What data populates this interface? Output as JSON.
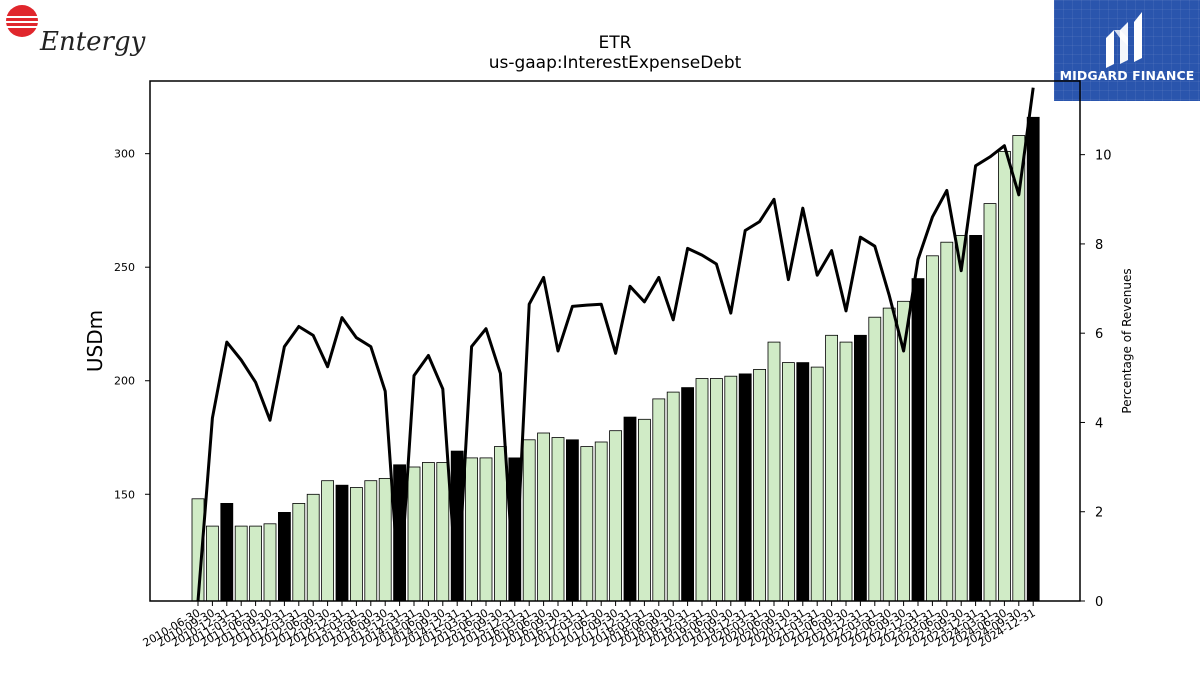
{
  "branding": {
    "left_logo_text": "Entergy",
    "right_logo_text": "MIDGARD FINANCE"
  },
  "chart_data": {
    "type": "bar",
    "title": "ETR",
    "subtitle": "us-gaap:InterestExpenseDebt",
    "ylabel": "USDm",
    "y2label": "Percentage of Revenues",
    "ylim": [
      103,
      332
    ],
    "y2lim": [
      0,
      11.65
    ],
    "yticks": [
      150,
      200,
      250,
      300
    ],
    "y2ticks": [
      0,
      2,
      4,
      6,
      8,
      10
    ],
    "colors": {
      "quarter_bar": "#d0ebc6",
      "annual_bar": "#000000",
      "line": "#000000",
      "bar_edge": "#000000"
    },
    "categories": [
      "2010-06-30",
      "2010-09-30",
      "2010-12-31",
      "2011-03-31",
      "2011-06-30",
      "2011-09-30",
      "2011-12-31",
      "2012-03-31",
      "2012-06-30",
      "2012-09-30",
      "2012-12-31",
      "2013-03-31",
      "2013-06-30",
      "2013-09-30",
      "2013-12-31",
      "2014-03-31",
      "2014-06-30",
      "2014-09-30",
      "2014-12-31",
      "2015-03-31",
      "2015-06-30",
      "2015-09-30",
      "2015-12-31",
      "2016-03-31",
      "2016-06-30",
      "2016-09-30",
      "2016-12-31",
      "2017-03-31",
      "2017-06-30",
      "2017-09-30",
      "2017-12-31",
      "2018-03-31",
      "2018-06-30",
      "2018-09-30",
      "2018-12-31",
      "2019-03-31",
      "2019-06-30",
      "2019-09-30",
      "2019-12-31",
      "2020-03-31",
      "2020-06-30",
      "2020-09-30",
      "2020-12-31",
      "2021-03-31",
      "2021-06-30",
      "2021-09-30",
      "2021-12-31",
      "2022-03-31",
      "2022-06-30",
      "2022-09-30",
      "2022-12-31",
      "2023-03-31",
      "2023-06-30",
      "2023-09-30",
      "2023-12-31",
      "2024-03-31",
      "2024-06-30",
      "2024-09-30",
      "2024-12-31"
    ],
    "series": [
      {
        "kind": "bar",
        "values": [
          148,
          136,
          146,
          136,
          136,
          137,
          142,
          146,
          150,
          156,
          154,
          153,
          156,
          157,
          163,
          162,
          164,
          164,
          169,
          166,
          166,
          171,
          166,
          174,
          177,
          175,
          174,
          171,
          173,
          178,
          184,
          183,
          192,
          195,
          197,
          201,
          201,
          202,
          203,
          205,
          217,
          208,
          208,
          206,
          220,
          217,
          220,
          228,
          232,
          235,
          245,
          255,
          261,
          264,
          264,
          278,
          301,
          308,
          316
        ],
        "annual": [
          false,
          false,
          true,
          false,
          false,
          false,
          true,
          false,
          false,
          false,
          true,
          false,
          false,
          false,
          true,
          false,
          false,
          false,
          true,
          false,
          false,
          false,
          true,
          false,
          false,
          false,
          true,
          false,
          false,
          false,
          true,
          false,
          false,
          false,
          true,
          false,
          false,
          false,
          true,
          false,
          false,
          false,
          true,
          false,
          false,
          false,
          true,
          false,
          false,
          false,
          true,
          false,
          false,
          false,
          true,
          false,
          false,
          false,
          true
        ]
      },
      {
        "kind": "line",
        "axis": "right",
        "values": [
          0.0,
          4.1,
          5.8,
          5.4,
          4.9,
          4.05,
          5.7,
          6.15,
          5.95,
          5.25,
          6.35,
          5.9,
          5.7,
          4.7,
          0.15,
          5.05,
          5.5,
          4.75,
          0.15,
          5.7,
          6.1,
          5.1,
          0.15,
          6.65,
          7.25,
          5.6,
          6.6,
          6.63,
          6.65,
          5.55,
          7.05,
          6.7,
          7.25,
          6.3,
          7.9,
          7.75,
          7.55,
          6.45,
          8.3,
          8.5,
          9.0,
          7.2,
          8.8,
          7.3,
          7.85,
          6.5,
          8.15,
          7.95,
          6.85,
          5.6,
          7.65,
          8.6,
          9.2,
          7.4,
          9.75,
          9.95,
          10.2,
          9.1,
          11.5
        ]
      }
    ]
  }
}
